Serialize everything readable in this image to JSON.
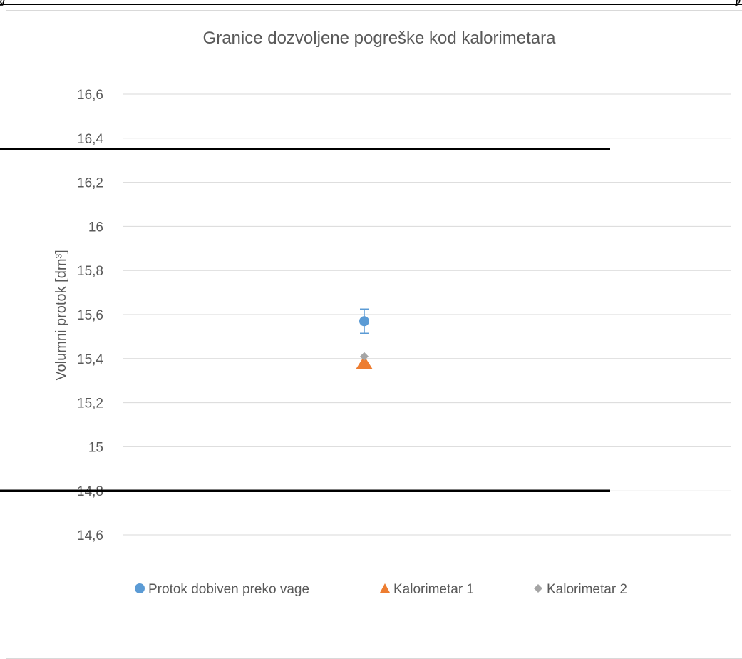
{
  "page": {
    "header_left": "g",
    "header_right": "p"
  },
  "chart_data": {
    "type": "scatter",
    "title": "Granice dozvoljene pogreške kod kalorimetara",
    "ylabel": "Volumni protok [dm³]",
    "xlabel": "",
    "ylim": [
      14.6,
      16.6
    ],
    "y_ticks": [
      "14,6",
      "14,8",
      "15",
      "15,2",
      "15,4",
      "15,6",
      "15,8",
      "16",
      "16,2",
      "16,4",
      "16,6"
    ],
    "y_tick_values": [
      14.6,
      14.8,
      15.0,
      15.2,
      15.4,
      15.6,
      15.8,
      16.0,
      16.2,
      16.4,
      16.6
    ],
    "grid": true,
    "limit_lines": [
      16.35,
      14.8
    ],
    "series": [
      {
        "name": "Protok dobiven preko vage",
        "marker": "circle",
        "color": "#5b9bd5",
        "y": 15.57,
        "error": 0.055
      },
      {
        "name": "Kalorimetar 1",
        "marker": "triangle",
        "color": "#ed7d31",
        "y": 15.38
      },
      {
        "name": "Kalorimetar 2",
        "marker": "diamond",
        "color": "#a5a5a5",
        "y": 15.41
      }
    ],
    "legend_position": "bottom"
  }
}
